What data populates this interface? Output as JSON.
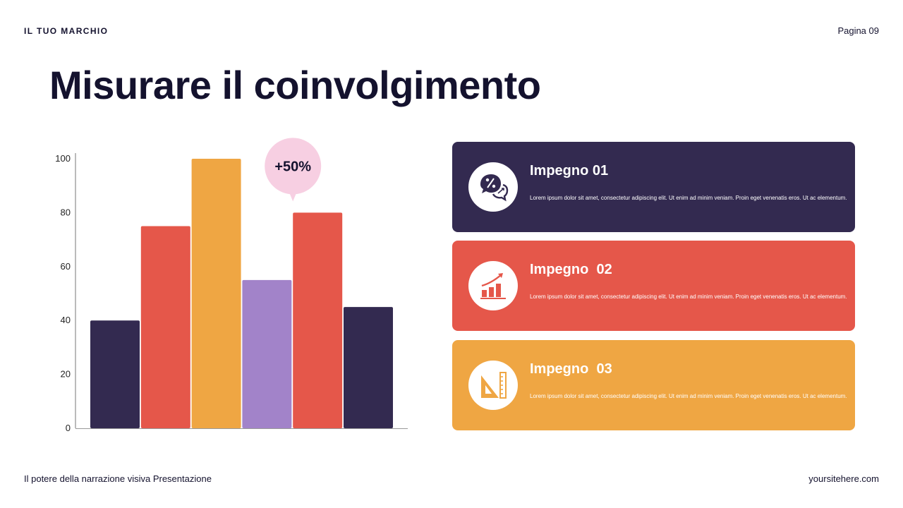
{
  "header": {
    "brand": "IL TUO MARCHIO",
    "page": "Pagina 09"
  },
  "title": "Misurare il coinvolgimento",
  "footer": {
    "left": "Il potere della narrazione visiva Presentazione",
    "right": "yoursitehere.com"
  },
  "colors": {
    "navy": "#332a50",
    "red": "#e5574a",
    "orange": "#efa643",
    "purple": "#a283c9",
    "bubble": "#f7cfe2",
    "dark_text": "#14122e"
  },
  "chart_data": {
    "type": "bar",
    "categories": [
      "",
      "",
      "",
      "",
      "",
      ""
    ],
    "values": [
      40,
      75,
      100,
      55,
      80,
      45
    ],
    "colors": [
      "#332a50",
      "#e5574a",
      "#efa643",
      "#a283c9",
      "#e5574a",
      "#332a50"
    ],
    "ylim": [
      0,
      100
    ],
    "yticks": [
      0,
      20,
      40,
      60,
      80,
      100
    ],
    "grid": false,
    "annotation": {
      "text": "+50%",
      "bar_index": 4
    }
  },
  "cards": [
    {
      "title": "Impegno 01",
      "text": "Lorem ipsum dolor sit amet, consectetur adipiscing elit. Ut enim ad minim veniam. Proin eget venenatis eros. Ut ac elementum.",
      "color": "#332a50",
      "icon": "chat-percent-icon"
    },
    {
      "title": "Impegno  02",
      "text": "Lorem ipsum dolor sit amet, consectetur adipiscing elit. Ut enim ad minim veniam. Proin eget venenatis eros. Ut ac elementum.",
      "color": "#e5574a",
      "icon": "growth-chart-icon"
    },
    {
      "title": "Impegno  03",
      "text": "Lorem ipsum dolor sit amet, consectetur adipiscing elit. Ut enim ad minim veniam. Proin eget venenatis eros. Ut ac elementum.",
      "color": "#efa643",
      "icon": "ruler-triangle-icon"
    }
  ]
}
